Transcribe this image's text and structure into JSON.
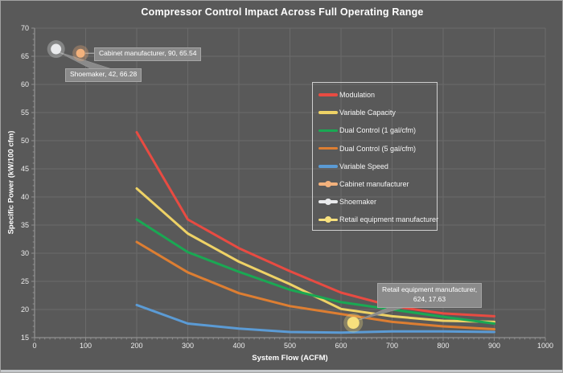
{
  "chart_data": {
    "type": "line",
    "title": "Compressor Control Impact Across Full Operating Range",
    "xlabel": "System Flow (ACFM)",
    "ylabel": "Specific Power (kW/100 cfm)",
    "xlim": [
      0,
      1000
    ],
    "ylim": [
      15,
      70
    ],
    "x_ticks": [
      0,
      100,
      200,
      300,
      400,
      500,
      600,
      700,
      800,
      900,
      1000
    ],
    "y_ticks": [
      15,
      20,
      25,
      30,
      35,
      40,
      45,
      50,
      55,
      60,
      65,
      70
    ],
    "grid": true,
    "legend_position": "inside upper right",
    "background": "#595959",
    "gridline_color": "#6a6a6a",
    "axis_color": "#9e9e9e",
    "x": [
      200,
      300,
      400,
      500,
      600,
      700,
      800,
      900
    ],
    "series": [
      {
        "name": "Modulation",
        "color": "#e84b42",
        "values": [
          51.5,
          36.0,
          30.9,
          26.8,
          23.0,
          20.6,
          19.3,
          18.8
        ]
      },
      {
        "name": "Variable Capacity",
        "color": "#eed266",
        "values": [
          41.5,
          33.5,
          28.5,
          24.5,
          20.1,
          18.8,
          18.0,
          17.8
        ]
      },
      {
        "name": "Dual Control (1 gal/cfm)",
        "color": "#1aa853",
        "values": [
          36.0,
          30.2,
          26.7,
          23.5,
          21.3,
          20.0,
          18.7,
          17.5
        ]
      },
      {
        "name": "Dual Control (5 gal/cfm)",
        "color": "#dd7e32",
        "values": [
          32.0,
          26.6,
          22.9,
          20.6,
          19.2,
          17.8,
          17.0,
          16.5
        ]
      },
      {
        "name": "Variable Speed",
        "color": "#5b9bd5",
        "values": [
          20.8,
          17.5,
          16.6,
          16.0,
          15.9,
          16.1,
          16.1,
          16.0
        ]
      }
    ],
    "points": [
      {
        "name": "Cabinet manufacturer",
        "x": 90,
        "y": 65.54,
        "color": "#f2b17c",
        "label": "Cabinet manufacturer, 90, 65.54"
      },
      {
        "name": "Shoemaker",
        "x": 42,
        "y": 66.28,
        "color": "#e9eaec",
        "label": "Shoemaker, 42, 66.28"
      },
      {
        "name": "Retail equipment manufacturer",
        "x": 624,
        "y": 17.63,
        "color": "#f7e07d",
        "label": "Retail equipment manufacturer, 624, 17.63"
      }
    ]
  }
}
